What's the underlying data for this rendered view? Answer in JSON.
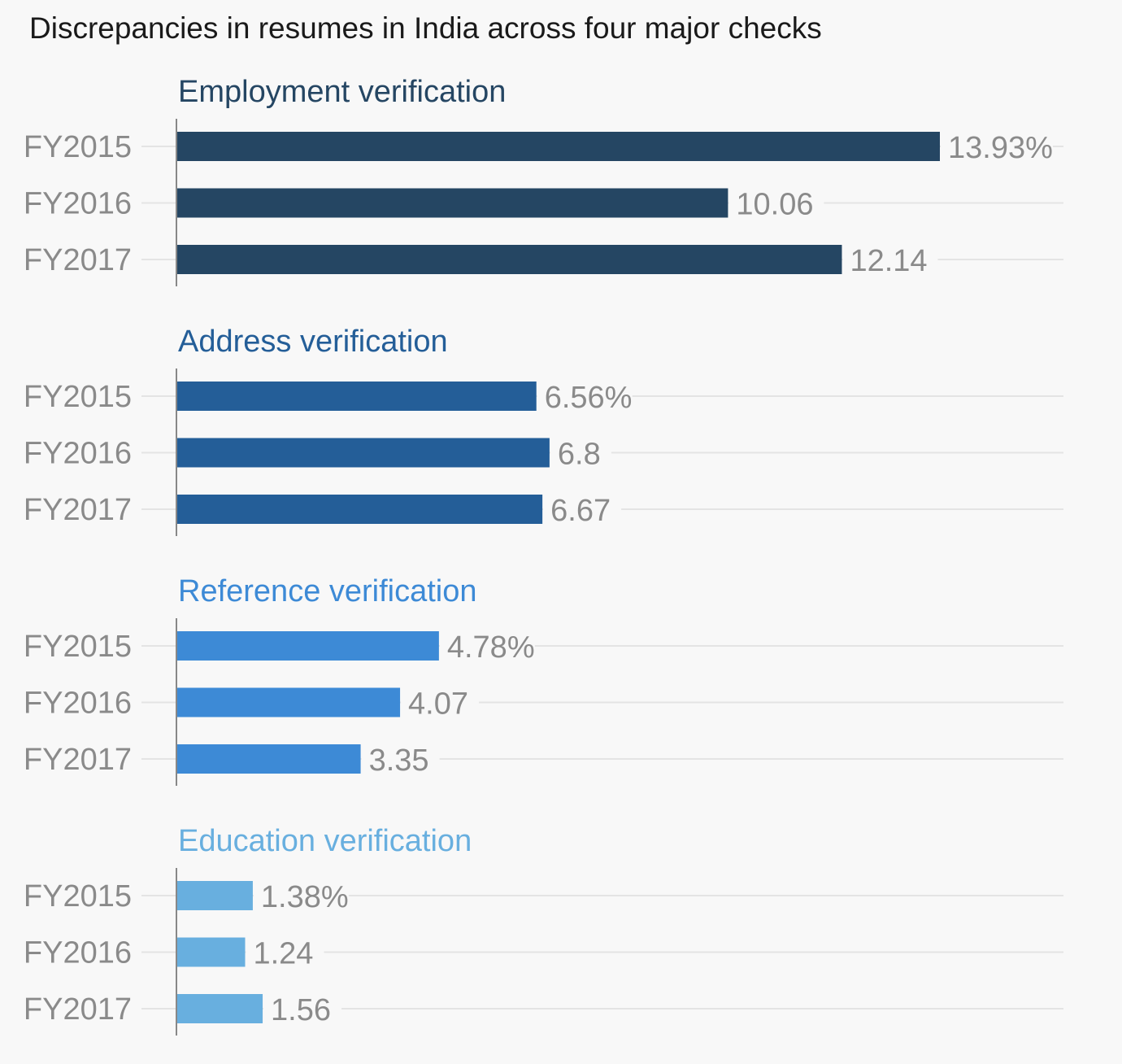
{
  "chart_data": {
    "type": "bar",
    "orientation": "horizontal",
    "title": "Discrepancies in resumes in India across four major checks",
    "categories": [
      "FY2015",
      "FY2016",
      "FY2017"
    ],
    "xlim": [
      0,
      16.2
    ],
    "grid": true,
    "legend": "none",
    "value_suffix_first": "%",
    "panels": [
      {
        "name": "Employment verification",
        "color": "#254663",
        "values": [
          13.93,
          10.06,
          12.14
        ],
        "labels": [
          "13.93%",
          "10.06",
          "12.14"
        ]
      },
      {
        "name": "Address verification",
        "color": "#245e98",
        "values": [
          6.56,
          6.8,
          6.67
        ],
        "labels": [
          "6.56%",
          "6.8",
          "6.67"
        ]
      },
      {
        "name": "Reference verification",
        "color": "#3d8ad6",
        "values": [
          4.78,
          4.07,
          3.35
        ],
        "labels": [
          "4.78%",
          "4.07",
          "3.35"
        ]
      },
      {
        "name": "Education verification",
        "color": "#68afdf",
        "values": [
          1.38,
          1.24,
          1.56
        ],
        "labels": [
          "1.38%",
          "1.24",
          "1.56"
        ]
      }
    ]
  }
}
